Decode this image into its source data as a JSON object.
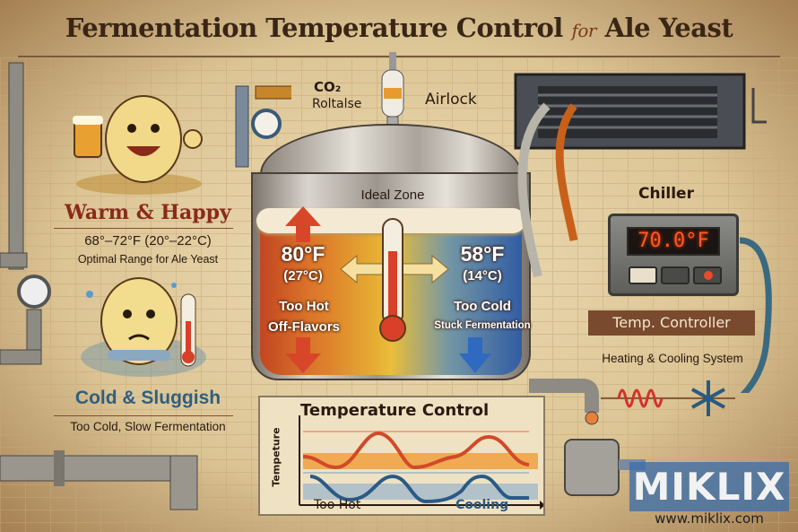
{
  "title": {
    "main": "Fermentation Temperature Control",
    "for": "for",
    "tail": "Ale Yeast"
  },
  "left_panel": {
    "warm_heading": "Warm & Happy",
    "range": "68°–72°F (20°–22°C)",
    "optimal": "Optimal Range for Ale Yeast",
    "cold_heading": "Cold & Sluggish",
    "cold_sub": "Too Cold, Slow Fermentation"
  },
  "tank": {
    "co2_label": "CO₂",
    "release_label": "Roltalse",
    "airlock_label": "Airlock",
    "ideal_zone": "Ideal Zone",
    "hot": {
      "temp_f": "80°F",
      "temp_c": "(27°C)",
      "label": "Too Hot",
      "sub": "Off-Flavors",
      "color": "#d8462a"
    },
    "cold": {
      "temp_f": "58°F",
      "temp_c": "(14°C)",
      "label": "Too Cold",
      "sub": "Stuck Fermentation",
      "color": "#2f6ac0"
    }
  },
  "right_panel": {
    "chiller_label": "Chiller",
    "display": "70.0°F",
    "controller_label": "Temp. Controller",
    "system_label": "Heating & Cooling System"
  },
  "temp_chart": {
    "title": "Temperature Control",
    "ylabel": "Tempeture",
    "left_caption": "Too Hot",
    "right_caption": "Cooling",
    "hot_color": "#d04a2a",
    "cold_color": "#2a5a86"
  },
  "watermark": {
    "brand": "MIKLIX",
    "url": "www.miklix.com"
  }
}
